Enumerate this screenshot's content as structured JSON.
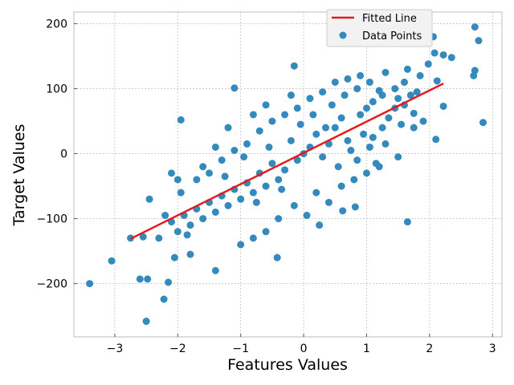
{
  "chart_data": {
    "type": "scatter",
    "title": "",
    "xlabel": "Features Values",
    "ylabel": "Target Values",
    "xlim": [
      -3.65,
      3.15
    ],
    "ylim": [
      -282,
      218
    ],
    "xticks": [
      -3,
      -2,
      -1,
      0,
      1,
      2,
      3
    ],
    "yticks": [
      -200,
      -100,
      0,
      100,
      200
    ],
    "xtick_labels": [
      "−3",
      "−2",
      "−1",
      "0",
      "1",
      "2",
      "3"
    ],
    "ytick_labels": [
      "−200",
      "−100",
      "0",
      "100",
      "200"
    ],
    "grid": true,
    "legend_position": "top-right",
    "series": [
      {
        "name": "Fitted Line",
        "kind": "line",
        "color": "#e41a1c",
        "x": [
          -2.75,
          2.22
        ],
        "y": [
          -131,
          108
        ]
      },
      {
        "name": "Data Points",
        "kind": "scatter",
        "color": "#348abd",
        "points": [
          [
            -3.4,
            -200
          ],
          [
            -3.05,
            -165
          ],
          [
            -2.6,
            -193
          ],
          [
            -2.48,
            -193
          ],
          [
            -2.5,
            -258
          ],
          [
            -2.22,
            -224
          ],
          [
            -2.15,
            -198
          ],
          [
            -2.75,
            -130
          ],
          [
            -2.55,
            -128
          ],
          [
            -2.45,
            -70
          ],
          [
            2.72,
            195
          ],
          [
            2.78,
            174
          ],
          [
            2.85,
            48
          ],
          [
            2.72,
            128
          ],
          [
            2.7,
            120
          ],
          [
            2.35,
            148
          ],
          [
            2.22,
            152
          ],
          [
            2.08,
            155
          ],
          [
            2.06,
            180
          ],
          [
            2.12,
            112
          ],
          [
            2.1,
            22
          ],
          [
            2.22,
            73
          ],
          [
            1.98,
            138
          ],
          [
            1.65,
            -105
          ],
          [
            1.4,
            190
          ],
          [
            -1.95,
            52
          ],
          [
            -1.1,
            101
          ],
          [
            -0.15,
            135
          ],
          [
            -0.42,
            -160
          ],
          [
            -1.4,
            -180
          ],
          [
            -2.05,
            -160
          ],
          [
            -1.8,
            -155
          ],
          [
            0.82,
            -82
          ],
          [
            0.62,
            -88
          ],
          [
            1.72,
            173
          ],
          [
            1.8,
            95
          ],
          [
            1.9,
            50
          ],
          [
            1.75,
            62
          ],
          [
            1.55,
            45
          ],
          [
            1.6,
            110
          ],
          [
            1.3,
            125
          ],
          [
            1.2,
            97
          ],
          [
            1.1,
            80
          ],
          [
            1.0,
            70
          ],
          [
            0.9,
            60
          ],
          [
            0.95,
            30
          ],
          [
            1.05,
            10
          ],
          [
            1.15,
            -15
          ],
          [
            1.25,
            40
          ],
          [
            1.35,
            55
          ],
          [
            1.45,
            70
          ],
          [
            1.5,
            85
          ],
          [
            1.7,
            90
          ],
          [
            1.85,
            120
          ],
          [
            1.65,
            130
          ],
          [
            0.7,
            20
          ],
          [
            0.6,
            55
          ],
          [
            0.5,
            40
          ],
          [
            0.4,
            15
          ],
          [
            0.3,
            -5
          ],
          [
            0.2,
            30
          ],
          [
            0.1,
            10
          ],
          [
            0.0,
            0
          ],
          [
            -0.1,
            -10
          ],
          [
            -0.2,
            20
          ],
          [
            -0.3,
            -25
          ],
          [
            -0.4,
            -40
          ],
          [
            -0.5,
            -15
          ],
          [
            -0.6,
            -50
          ],
          [
            -0.7,
            -30
          ],
          [
            -0.8,
            -60
          ],
          [
            -0.9,
            -45
          ],
          [
            -1.0,
            -70
          ],
          [
            -1.1,
            -55
          ],
          [
            -1.2,
            -80
          ],
          [
            -1.3,
            -65
          ],
          [
            -1.4,
            -90
          ],
          [
            -1.5,
            -75
          ],
          [
            -1.6,
            -100
          ],
          [
            -1.7,
            -85
          ],
          [
            -1.8,
            -110
          ],
          [
            -1.9,
            -95
          ],
          [
            -2.0,
            -120
          ],
          [
            -2.1,
            -105
          ],
          [
            -2.3,
            -130
          ],
          [
            -2.2,
            -95
          ],
          [
            -1.95,
            -60
          ],
          [
            -1.7,
            -40
          ],
          [
            -1.5,
            -30
          ],
          [
            -1.3,
            -10
          ],
          [
            -1.1,
            5
          ],
          [
            -0.9,
            15
          ],
          [
            -0.7,
            35
          ],
          [
            -0.5,
            50
          ],
          [
            -0.3,
            60
          ],
          [
            -0.1,
            70
          ],
          [
            0.1,
            85
          ],
          [
            0.3,
            95
          ],
          [
            0.5,
            110
          ],
          [
            0.7,
            115
          ],
          [
            0.9,
            120
          ],
          [
            -1.2,
            40
          ],
          [
            -0.8,
            60
          ],
          [
            -0.6,
            75
          ],
          [
            -0.2,
            90
          ],
          [
            0.2,
            -60
          ],
          [
            0.4,
            -75
          ],
          [
            0.6,
            -50
          ],
          [
            0.8,
            -40
          ],
          [
            1.0,
            -30
          ],
          [
            1.2,
            -20
          ],
          [
            -0.4,
            -100
          ],
          [
            -0.6,
            -120
          ],
          [
            -0.8,
            -130
          ],
          [
            -1.0,
            -140
          ],
          [
            0.05,
            -95
          ],
          [
            0.25,
            -110
          ],
          [
            -0.15,
            -80
          ],
          [
            0.55,
            -20
          ],
          [
            0.75,
            5
          ],
          [
            0.85,
            -10
          ],
          [
            1.1,
            25
          ],
          [
            1.3,
            15
          ],
          [
            1.5,
            -5
          ],
          [
            -1.85,
            -125
          ],
          [
            -2.0,
            -40
          ],
          [
            -2.1,
            -30
          ],
          [
            -1.6,
            -20
          ],
          [
            -1.4,
            10
          ],
          [
            -1.25,
            -35
          ],
          [
            -0.95,
            -5
          ],
          [
            -0.75,
            -75
          ],
          [
            -0.55,
            10
          ],
          [
            -0.35,
            -55
          ],
          [
            -0.05,
            45
          ],
          [
            0.15,
            60
          ],
          [
            0.35,
            40
          ],
          [
            0.45,
            75
          ],
          [
            0.65,
            90
          ],
          [
            0.85,
            100
          ],
          [
            1.05,
            110
          ],
          [
            1.25,
            90
          ],
          [
            1.45,
            100
          ],
          [
            1.6,
            75
          ],
          [
            1.75,
            40
          ]
        ]
      }
    ]
  }
}
